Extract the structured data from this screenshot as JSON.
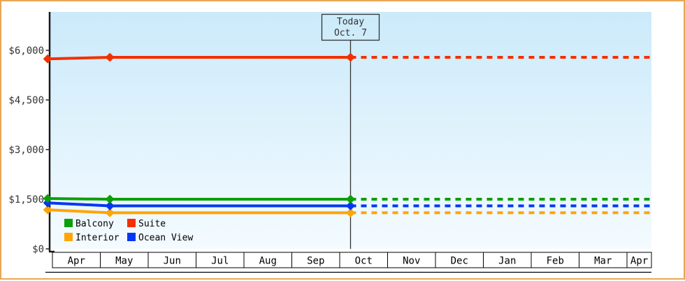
{
  "chart_data": {
    "type": "line",
    "title": "",
    "x_axis": {
      "labels": [
        "Apr",
        "May",
        "Jun",
        "Jul",
        "Aug",
        "Sep",
        "Oct",
        "Nov",
        "Dec",
        "Jan",
        "Feb",
        "Mar",
        "Apr"
      ]
    },
    "y_axis": {
      "tick_labels": [
        "$0",
        "$1,500",
        "$3,000",
        "$4,500",
        "$6,000"
      ],
      "tick_values": [
        0,
        1500,
        3000,
        4500,
        6000
      ],
      "min": 0,
      "max": 6000
    },
    "annotation": {
      "line1": "Today",
      "line2": "Oct. 7",
      "month_frac": 6.226
    },
    "series": [
      {
        "name": "Interior",
        "color": "#ffa505",
        "points": [
          {
            "month_frac": -0.1,
            "value": 1180
          },
          {
            "month_frac": 1.2,
            "value": 1090
          },
          {
            "month_frac": 6.226,
            "value": 1090
          }
        ],
        "forecast_value": 1090
      },
      {
        "name": "Ocean View",
        "color": "#0437f4",
        "points": [
          {
            "month_frac": -0.1,
            "value": 1390
          },
          {
            "month_frac": 1.2,
            "value": 1300
          },
          {
            "month_frac": 6.226,
            "value": 1300
          }
        ],
        "forecast_value": 1300
      },
      {
        "name": "Balcony",
        "color": "#0aa00a",
        "points": [
          {
            "month_frac": -0.1,
            "value": 1520
          },
          {
            "month_frac": 1.2,
            "value": 1500
          },
          {
            "month_frac": 6.226,
            "value": 1500
          }
        ],
        "forecast_value": 1500
      },
      {
        "name": "Suite",
        "color": "#f43000",
        "points": [
          {
            "month_frac": -0.1,
            "value": 5740
          },
          {
            "month_frac": 1.2,
            "value": 5790
          },
          {
            "month_frac": 6.226,
            "value": 5790
          }
        ],
        "forecast_value": 5790
      }
    ],
    "legend": {
      "position": "bottom-left-inside",
      "items": [
        {
          "label": "Balcony",
          "color": "#0aa00a"
        },
        {
          "label": "Suite",
          "color": "#f43000"
        },
        {
          "label": "Interior",
          "color": "#ffa505"
        },
        {
          "label": "Ocean View",
          "color": "#0437f4"
        }
      ]
    },
    "styles": {
      "frame_border": "#e9a757",
      "plot_bg_top": "#cbeafa",
      "plot_bg_bottom": "#f4fbff",
      "axis_color": "#1a1a1a",
      "tick_label_color": "#333333",
      "month_label_color": "#000000",
      "annotation_color": "#333333"
    }
  }
}
